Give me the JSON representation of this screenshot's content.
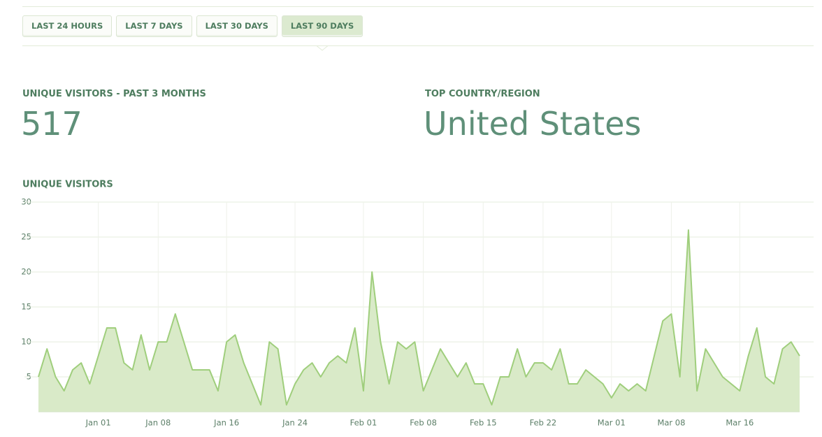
{
  "tabs": [
    "LAST 24 HOURS",
    "LAST 7 DAYS",
    "LAST 30 DAYS",
    "LAST 90 DAYS"
  ],
  "active_tab": 3,
  "stats": [
    {
      "label": "UNIQUE VISITORS - PAST 3 MONTHS",
      "value": 517
    },
    {
      "label": "TOP COUNTRY/REGION",
      "value": "United States"
    }
  ],
  "chart_data": {
    "type": "area",
    "title": "UNIQUE VISITORS",
    "categories": [
      null,
      null,
      null,
      null,
      null,
      null,
      null,
      "Jan 01",
      null,
      null,
      null,
      null,
      null,
      null,
      "Jan 08",
      null,
      null,
      null,
      null,
      null,
      null,
      null,
      "Jan 16",
      null,
      null,
      null,
      null,
      null,
      null,
      null,
      "Jan 24",
      null,
      null,
      null,
      null,
      null,
      null,
      null,
      "Feb 01",
      null,
      null,
      null,
      null,
      null,
      null,
      "Feb 08",
      null,
      null,
      null,
      null,
      null,
      null,
      "Feb 15",
      null,
      null,
      null,
      null,
      null,
      null,
      "Feb 22",
      null,
      null,
      null,
      null,
      null,
      null,
      null,
      "Mar 01",
      null,
      null,
      null,
      null,
      null,
      null,
      "Mar 08",
      null,
      null,
      null,
      null,
      null,
      null,
      null,
      "Mar 16",
      null,
      null,
      null,
      null,
      null,
      null,
      null
    ],
    "values": [
      5,
      9,
      5,
      3,
      6,
      7,
      4,
      8,
      12,
      12,
      7,
      6,
      11,
      6,
      10,
      10,
      14,
      10,
      6,
      6,
      6,
      3,
      10,
      11,
      7,
      4,
      1,
      10,
      9,
      1,
      4,
      6,
      7,
      5,
      7,
      8,
      7,
      12,
      3,
      20,
      10,
      4,
      10,
      9,
      10,
      3,
      6,
      9,
      7,
      5,
      7,
      4,
      4,
      1,
      5,
      5,
      9,
      5,
      7,
      7,
      6,
      9,
      4,
      4,
      6,
      5,
      4,
      2,
      4,
      3,
      4,
      3,
      8,
      13,
      14,
      5,
      26,
      3,
      9,
      7,
      5,
      4,
      3,
      8,
      12,
      5,
      4,
      9,
      10,
      8
    ],
    "ylim": [
      0,
      30
    ],
    "yticks": [
      5,
      10,
      15,
      20,
      25,
      30
    ],
    "color": "#d9eac8",
    "line_color": "#9fce7c",
    "grid": true
  }
}
